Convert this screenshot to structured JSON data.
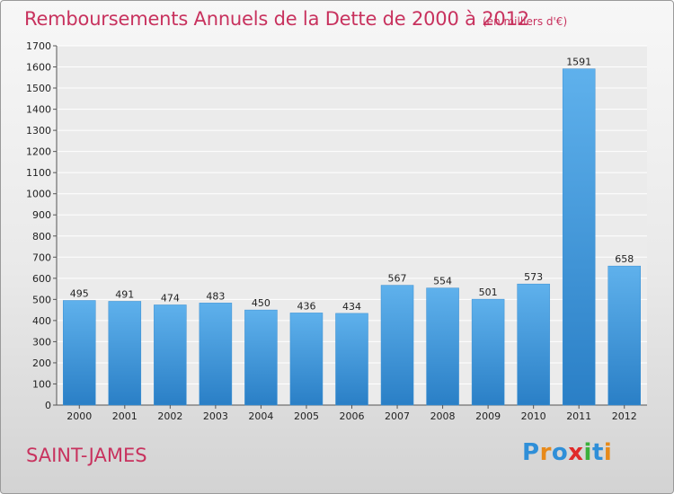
{
  "chart_data": {
    "type": "bar",
    "title": "Remboursements Annuels de la Dette de 2000 à 2012",
    "subtitle": "(en milliers d'€)",
    "categories": [
      "2000",
      "2001",
      "2002",
      "2003",
      "2004",
      "2005",
      "2006",
      "2007",
      "2008",
      "2009",
      "2010",
      "2011",
      "2012"
    ],
    "values": [
      495,
      491,
      474,
      483,
      450,
      436,
      434,
      567,
      554,
      501,
      573,
      1591,
      658
    ],
    "ylim": [
      0,
      1700
    ],
    "yticks": [
      0,
      100,
      200,
      300,
      400,
      500,
      600,
      700,
      800,
      900,
      1000,
      1100,
      1200,
      1300,
      1400,
      1500,
      1600,
      1700
    ],
    "grid": true,
    "bar_color": "#4a9fe0"
  },
  "location": "SAINT-JAMES",
  "logo": {
    "letters": [
      "P",
      "r",
      "o",
      "x",
      "i",
      "t",
      "i"
    ],
    "colors": [
      "#2f8fd8",
      "#e88a1a",
      "#2f8fd8",
      "#e02a2a",
      "#3bb03b",
      "#2f8fd8",
      "#e88a1a"
    ]
  }
}
